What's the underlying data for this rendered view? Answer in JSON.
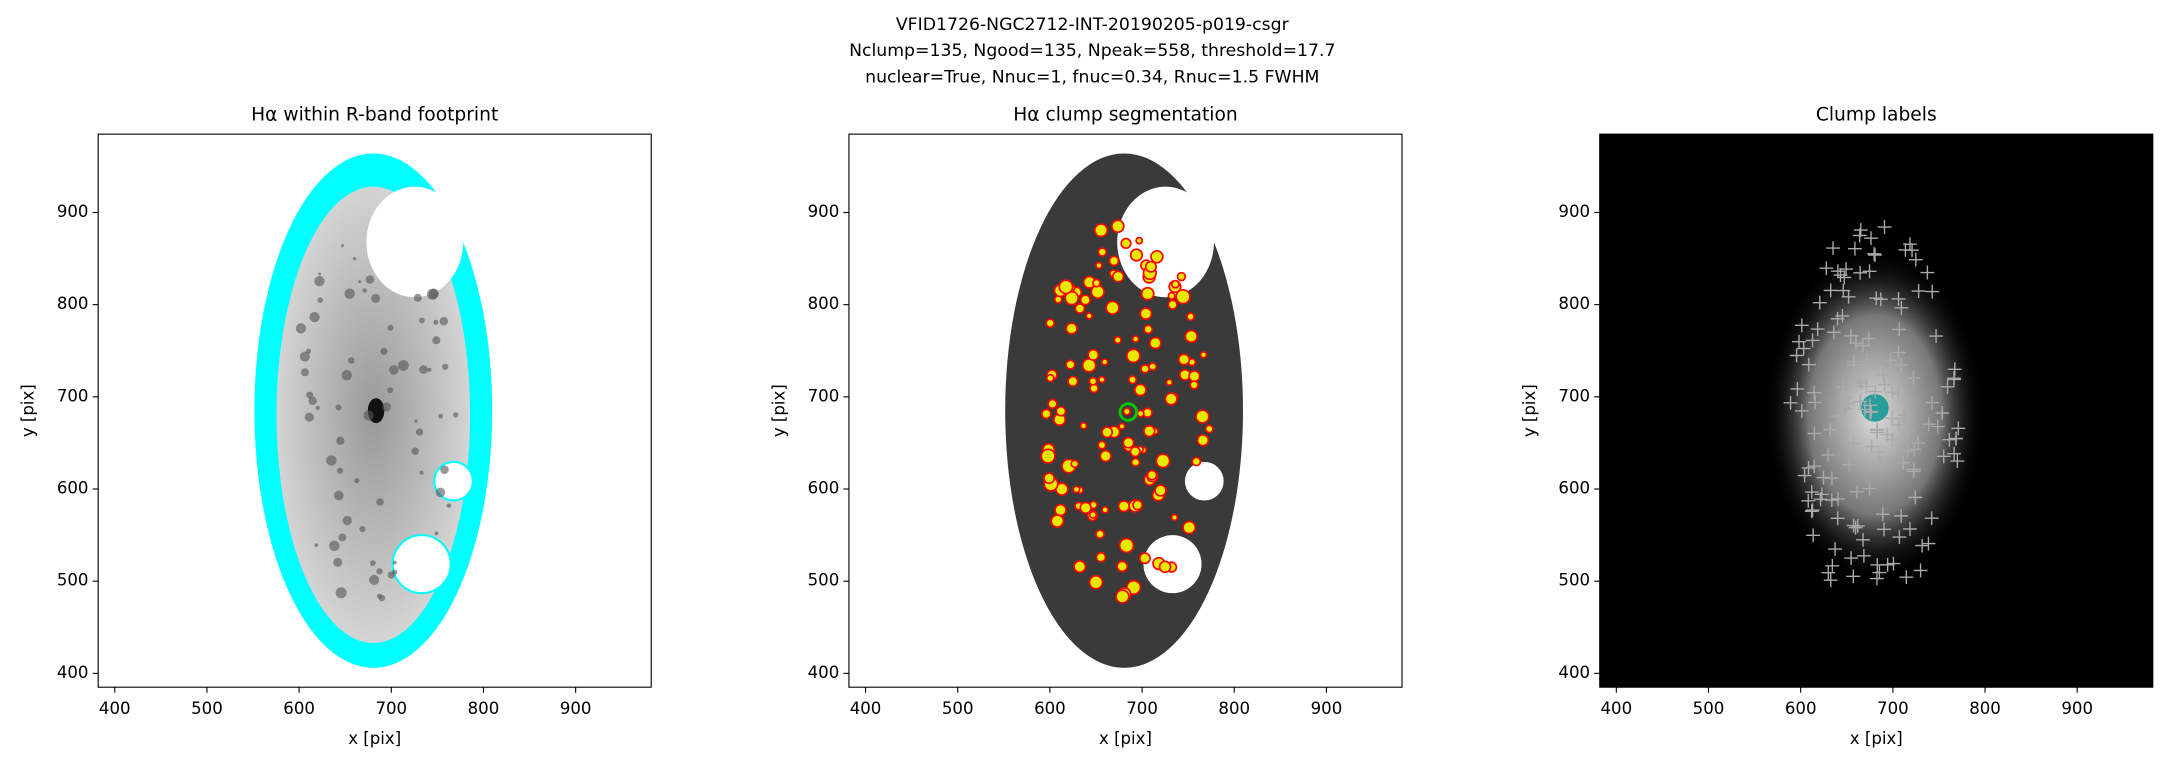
{
  "figure_title": [
    "VFID1726-NGC2712-INT-20190205-p019-csgr",
    "Nclump=135, Ngood=135, Npeak=558, threshold=17.7",
    "nuclear=True, Nnuc=1, fnuc=0.34, Rnuc=1.5 FWHM"
  ],
  "chart_data": [
    {
      "type": "image",
      "title": "Hα within R-band footprint",
      "xlabel": "x [pix]",
      "ylabel": "y [pix]",
      "xlim": [
        382,
        982
      ],
      "ylim": [
        385,
        985
      ],
      "xticks": [
        400,
        500,
        600,
        700,
        800,
        900
      ],
      "yticks": [
        400,
        500,
        600,
        700,
        800,
        900
      ]
    },
    {
      "type": "image",
      "title": "Hα clump segmentation",
      "xlabel": "x [pix]",
      "ylabel": "y [pix]",
      "xlim": [
        382,
        982
      ],
      "ylim": [
        385,
        985
      ],
      "xticks": [
        400,
        500,
        600,
        700,
        800,
        900
      ],
      "yticks": [
        400,
        500,
        600,
        700,
        800,
        900
      ]
    },
    {
      "type": "image",
      "title": "Clump labels",
      "xlabel": "x [pix]",
      "ylabel": "y [pix]",
      "xlim": [
        382,
        982
      ],
      "ylim": [
        385,
        985
      ],
      "xticks": [
        400,
        500,
        600,
        700,
        800,
        900
      ],
      "yticks": [
        400,
        500,
        600,
        700,
        800,
        900
      ]
    }
  ]
}
